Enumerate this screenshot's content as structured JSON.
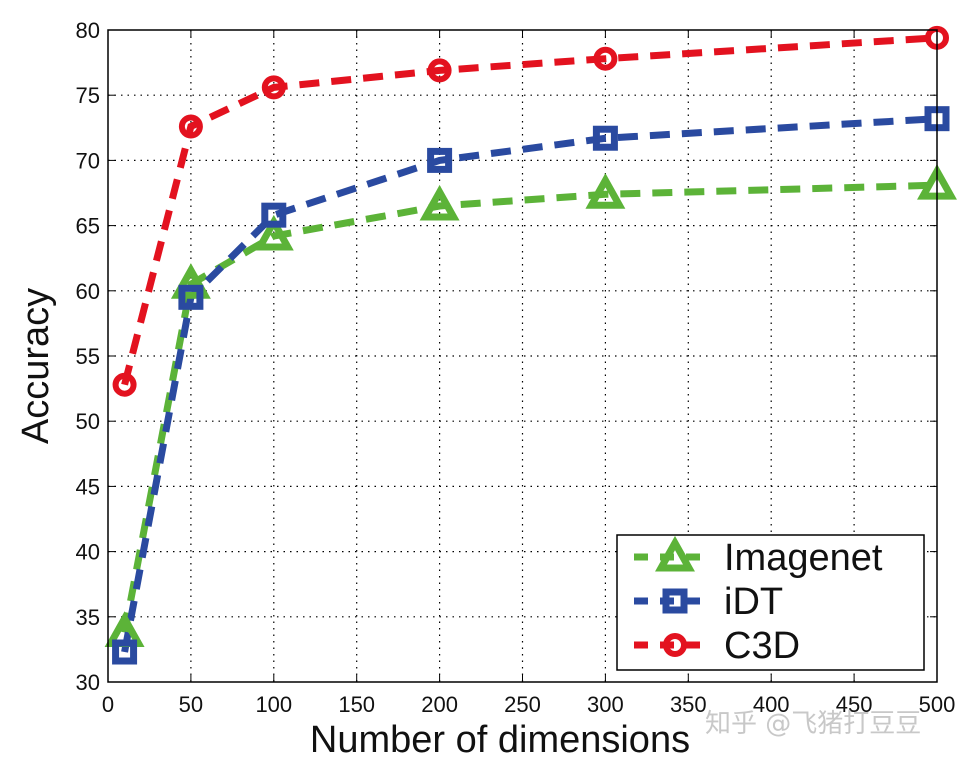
{
  "chart_data": {
    "type": "line",
    "title": "",
    "xlabel": "Number of dimensions",
    "ylabel": "Accuracy",
    "x": [
      10,
      50,
      100,
      200,
      300,
      500
    ],
    "xlim": [
      0,
      500
    ],
    "ylim": [
      30,
      80
    ],
    "xticks": [
      0,
      50,
      100,
      150,
      200,
      250,
      300,
      350,
      400,
      450,
      500
    ],
    "yticks": [
      30,
      35,
      40,
      45,
      50,
      55,
      60,
      65,
      70,
      75,
      80
    ],
    "grid": true,
    "grid_style": "dotted",
    "legend_position": "lower right",
    "series": [
      {
        "name": "Imagenet",
        "color": "#5cb338",
        "marker": "triangle",
        "line_style": "dashed",
        "values": [
          33.8,
          60.5,
          64.2,
          66.5,
          67.4,
          68.1
        ]
      },
      {
        "name": "iDT",
        "color": "#2a4aa0",
        "marker": "square",
        "line_style": "dashed",
        "values": [
          32.3,
          59.5,
          65.8,
          70.0,
          71.7,
          73.2
        ]
      },
      {
        "name": "C3D",
        "color": "#e3121f",
        "marker": "circle",
        "line_style": "dashed",
        "values": [
          52.8,
          72.6,
          75.6,
          76.9,
          77.8,
          79.4
        ]
      }
    ]
  },
  "legend": {
    "items": [
      "Imagenet",
      "iDT",
      "C3D"
    ]
  },
  "watermark": "知乎 @飞猪打豆豆"
}
